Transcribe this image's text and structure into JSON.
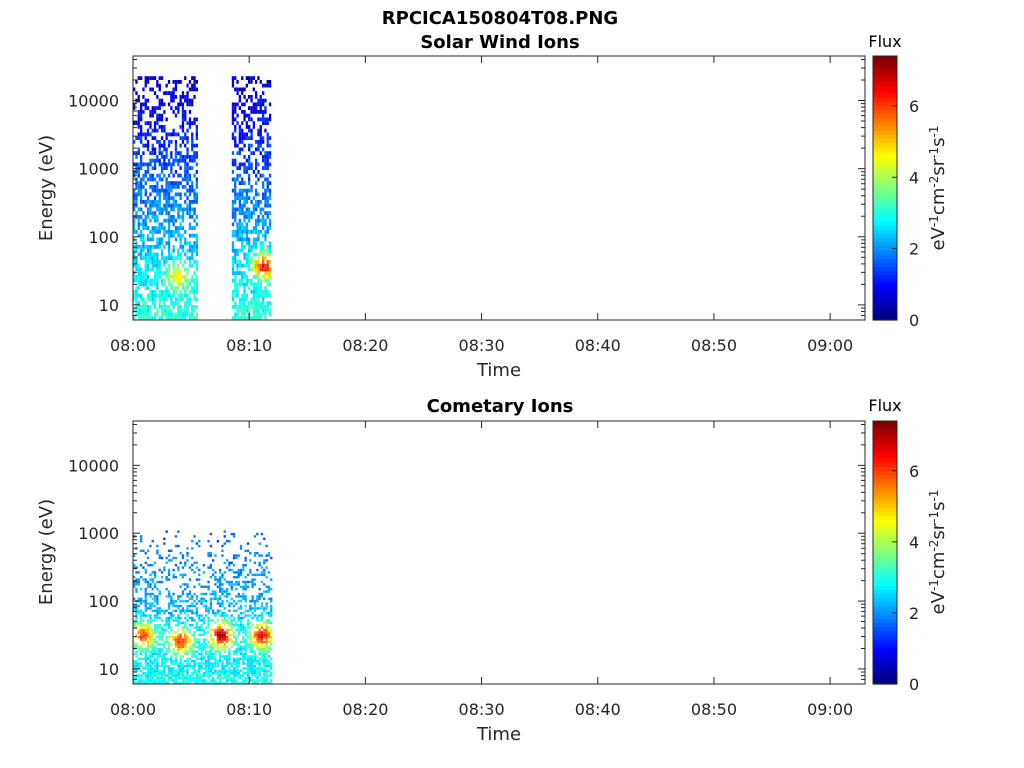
{
  "figure_title": "RPCICA150804T08.PNG",
  "colors": {
    "colormap": "jet",
    "axis": "#262626"
  },
  "chart_data": [
    {
      "type": "heatmap",
      "title": "Solar Wind Ions",
      "xlabel": "Time",
      "ylabel": "Energy (eV)",
      "x_ticks": [
        "08:00",
        "08:10",
        "08:20",
        "08:30",
        "08:40",
        "08:50",
        "09:00"
      ],
      "x_range_minutes": [
        0,
        63
      ],
      "y_scale": "log",
      "y_ticks": [
        "10",
        "100",
        "1000",
        "10000"
      ],
      "y_range": [
        6,
        45000
      ],
      "colorbar": {
        "label": "Flux",
        "units": "eV-1cm-2sr-1s-1",
        "range": [
          0,
          7.4
        ],
        "ticks": [
          "0",
          "2",
          "4",
          "6"
        ]
      },
      "bursts": [
        {
          "t_start": 0.0,
          "t_end": 5.5,
          "e_min": 6,
          "e_max": 20000
        },
        {
          "t_start": 8.5,
          "t_end": 11.8,
          "e_min": 6,
          "e_max": 20000
        }
      ],
      "peak_flux": [
        {
          "t": 3.8,
          "e": 25,
          "flux": 4.8
        },
        {
          "t": 11.2,
          "e": 35,
          "flux": 6.5
        }
      ]
    },
    {
      "type": "heatmap",
      "title": "Cometary Ions",
      "xlabel": "Time",
      "ylabel": "Energy (eV)",
      "x_ticks": [
        "08:00",
        "08:10",
        "08:20",
        "08:30",
        "08:40",
        "08:50",
        "09:00"
      ],
      "x_range_minutes": [
        0,
        63
      ],
      "y_scale": "log",
      "y_ticks": [
        "10",
        "100",
        "1000",
        "10000"
      ],
      "y_range": [
        6,
        45000
      ],
      "colorbar": {
        "label": "Flux",
        "units": "eV-1cm-2sr-1s-1",
        "range": [
          0,
          7.4
        ],
        "ticks": [
          "0",
          "2",
          "4",
          "6"
        ]
      },
      "bursts": [
        {
          "t_start": 0.0,
          "t_end": 11.8,
          "e_min": 6,
          "e_max": 1100
        }
      ],
      "peak_flux": [
        {
          "t": 0.8,
          "e": 30,
          "flux": 6.0
        },
        {
          "t": 4.0,
          "e": 25,
          "flux": 6.3
        },
        {
          "t": 7.5,
          "e": 30,
          "flux": 7.2
        },
        {
          "t": 11.0,
          "e": 30,
          "flux": 6.6
        }
      ]
    }
  ]
}
